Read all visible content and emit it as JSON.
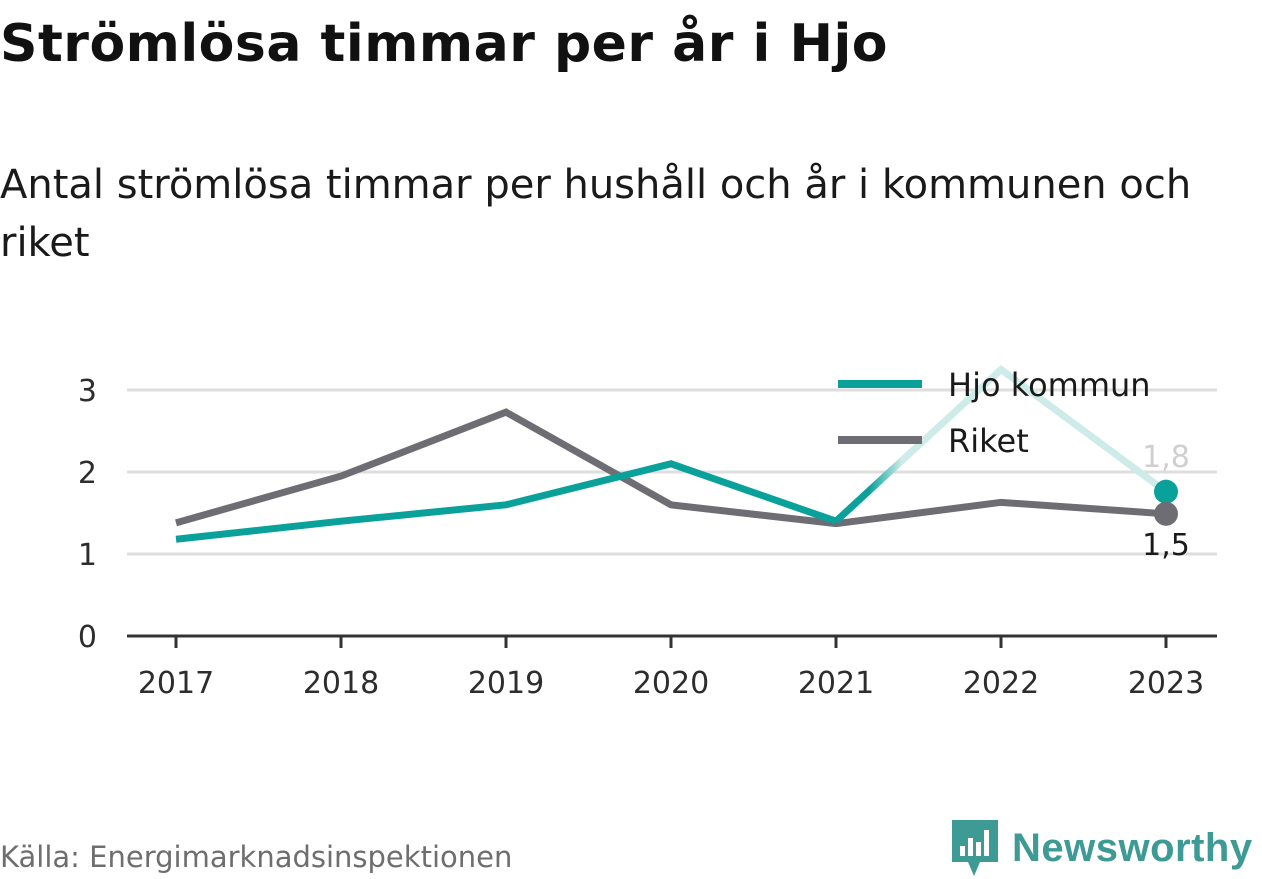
{
  "header": {
    "title": "Strömlösa timmar per år i Hjo",
    "subtitle": "Antal strömlösa timmar per hushåll och år i kommunen och riket"
  },
  "footer": {
    "source": "Källa: Energimarknadsinspektionen",
    "brand": "Newsworthy",
    "brand_icon": "newsworthy-logo-icon",
    "brand_color": "#3d9a94"
  },
  "chart_data": {
    "type": "line",
    "categories": [
      "2017",
      "2018",
      "2019",
      "2020",
      "2021",
      "2022",
      "2023"
    ],
    "ylim": [
      0,
      3.3
    ],
    "yticks": [
      "0",
      "1",
      "2",
      "3"
    ],
    "grid": true,
    "legend_position": "top-right",
    "series": [
      {
        "name": "Hjo kommun",
        "color": "#0aa19b",
        "highlight_color": "#cdece9",
        "values": [
          1.18,
          1.4,
          1.6,
          2.1,
          1.4,
          3.25,
          1.76
        ],
        "end_label": "1,8"
      },
      {
        "name": "Riket",
        "color": "#6e6d74",
        "values": [
          1.38,
          1.95,
          2.73,
          1.6,
          1.37,
          1.63,
          1.49
        ],
        "end_label": "1,5"
      }
    ]
  }
}
